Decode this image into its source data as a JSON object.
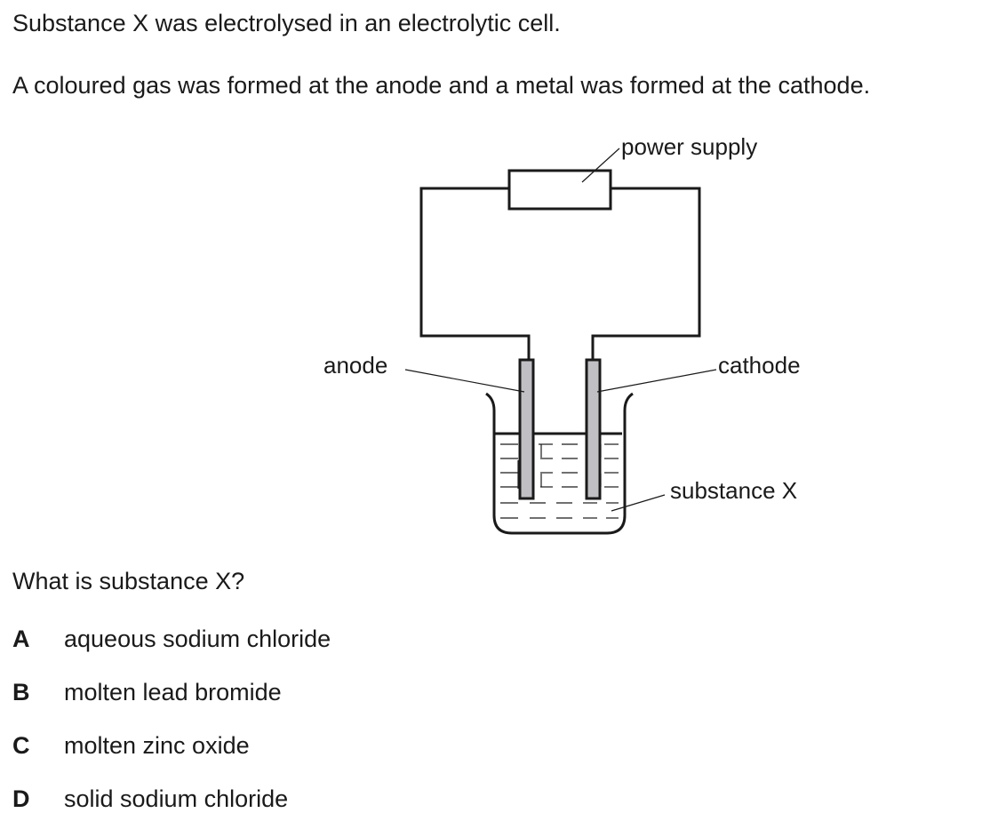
{
  "stem": {
    "line1": "Substance X was electrolysed in an electrolytic cell.",
    "line2": "A coloured gas was formed at the anode and a metal was formed at the cathode."
  },
  "diagram": {
    "labels": {
      "power_supply": "power supply",
      "anode": "anode",
      "cathode": "cathode",
      "substance": "substance X"
    },
    "colors": {
      "electrode_fill": "#c0c0c4",
      "line": "#1a1a1a"
    }
  },
  "question": "What is substance X?",
  "options": [
    {
      "letter": "A",
      "text": "aqueous sodium chloride"
    },
    {
      "letter": "B",
      "text": "molten lead bromide"
    },
    {
      "letter": "C",
      "text": "molten zinc oxide"
    },
    {
      "letter": "D",
      "text": "solid sodium chloride"
    }
  ]
}
